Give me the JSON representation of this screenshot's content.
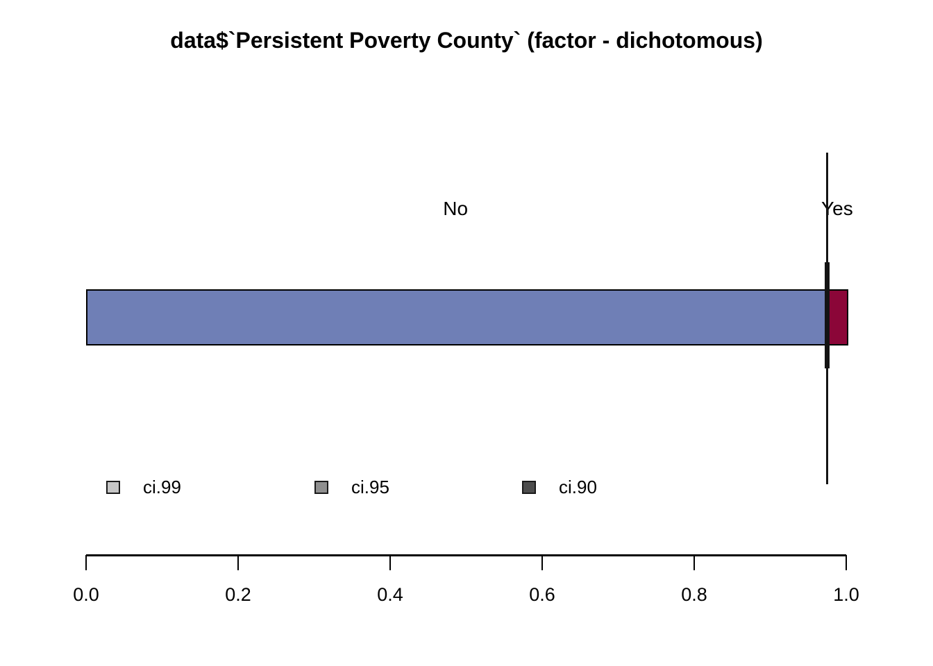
{
  "title": "data$`Persistent Poverty County` (factor - dichotomous)",
  "chart_data": {
    "type": "bar",
    "subtype": "horizontal-stacked-proportion",
    "variable": "data$`Persistent Poverty County`",
    "variable_kind": "factor - dichotomous",
    "categories": [
      "No",
      "Yes"
    ],
    "proportions": [
      0.975,
      0.025
    ],
    "segment_colors": [
      "#6F7FB6",
      "#8B0638"
    ],
    "category_label_x": [
      0.486,
      0.988
    ],
    "xlim": [
      0.0,
      1.0
    ],
    "x_ticks": [
      0.0,
      0.2,
      0.4,
      0.6,
      0.8,
      1.0
    ],
    "x_tick_labels": [
      "0.0",
      "0.2",
      "0.4",
      "0.6",
      "0.8",
      "1.0"
    ],
    "gridline_xs": [
      0.0,
      0.1,
      0.2,
      0.3,
      0.4,
      0.5,
      0.6,
      0.7,
      0.8,
      0.9,
      1.0
    ],
    "grid_on": true,
    "ci_marker_x": 0.975,
    "legend_position": "bottom-left"
  },
  "legend": {
    "items": [
      {
        "label": "ci.99",
        "color": "#C6C6C6"
      },
      {
        "label": "ci.95",
        "color": "#8F8F8F"
      },
      {
        "label": "ci.90",
        "color": "#4D4D4D"
      }
    ]
  },
  "colors": {
    "gridline": "#C2C2C2",
    "bar_border": "#000000",
    "ci_line": "#141414",
    "axis": "#000000",
    "background": "#FFFFFF"
  }
}
